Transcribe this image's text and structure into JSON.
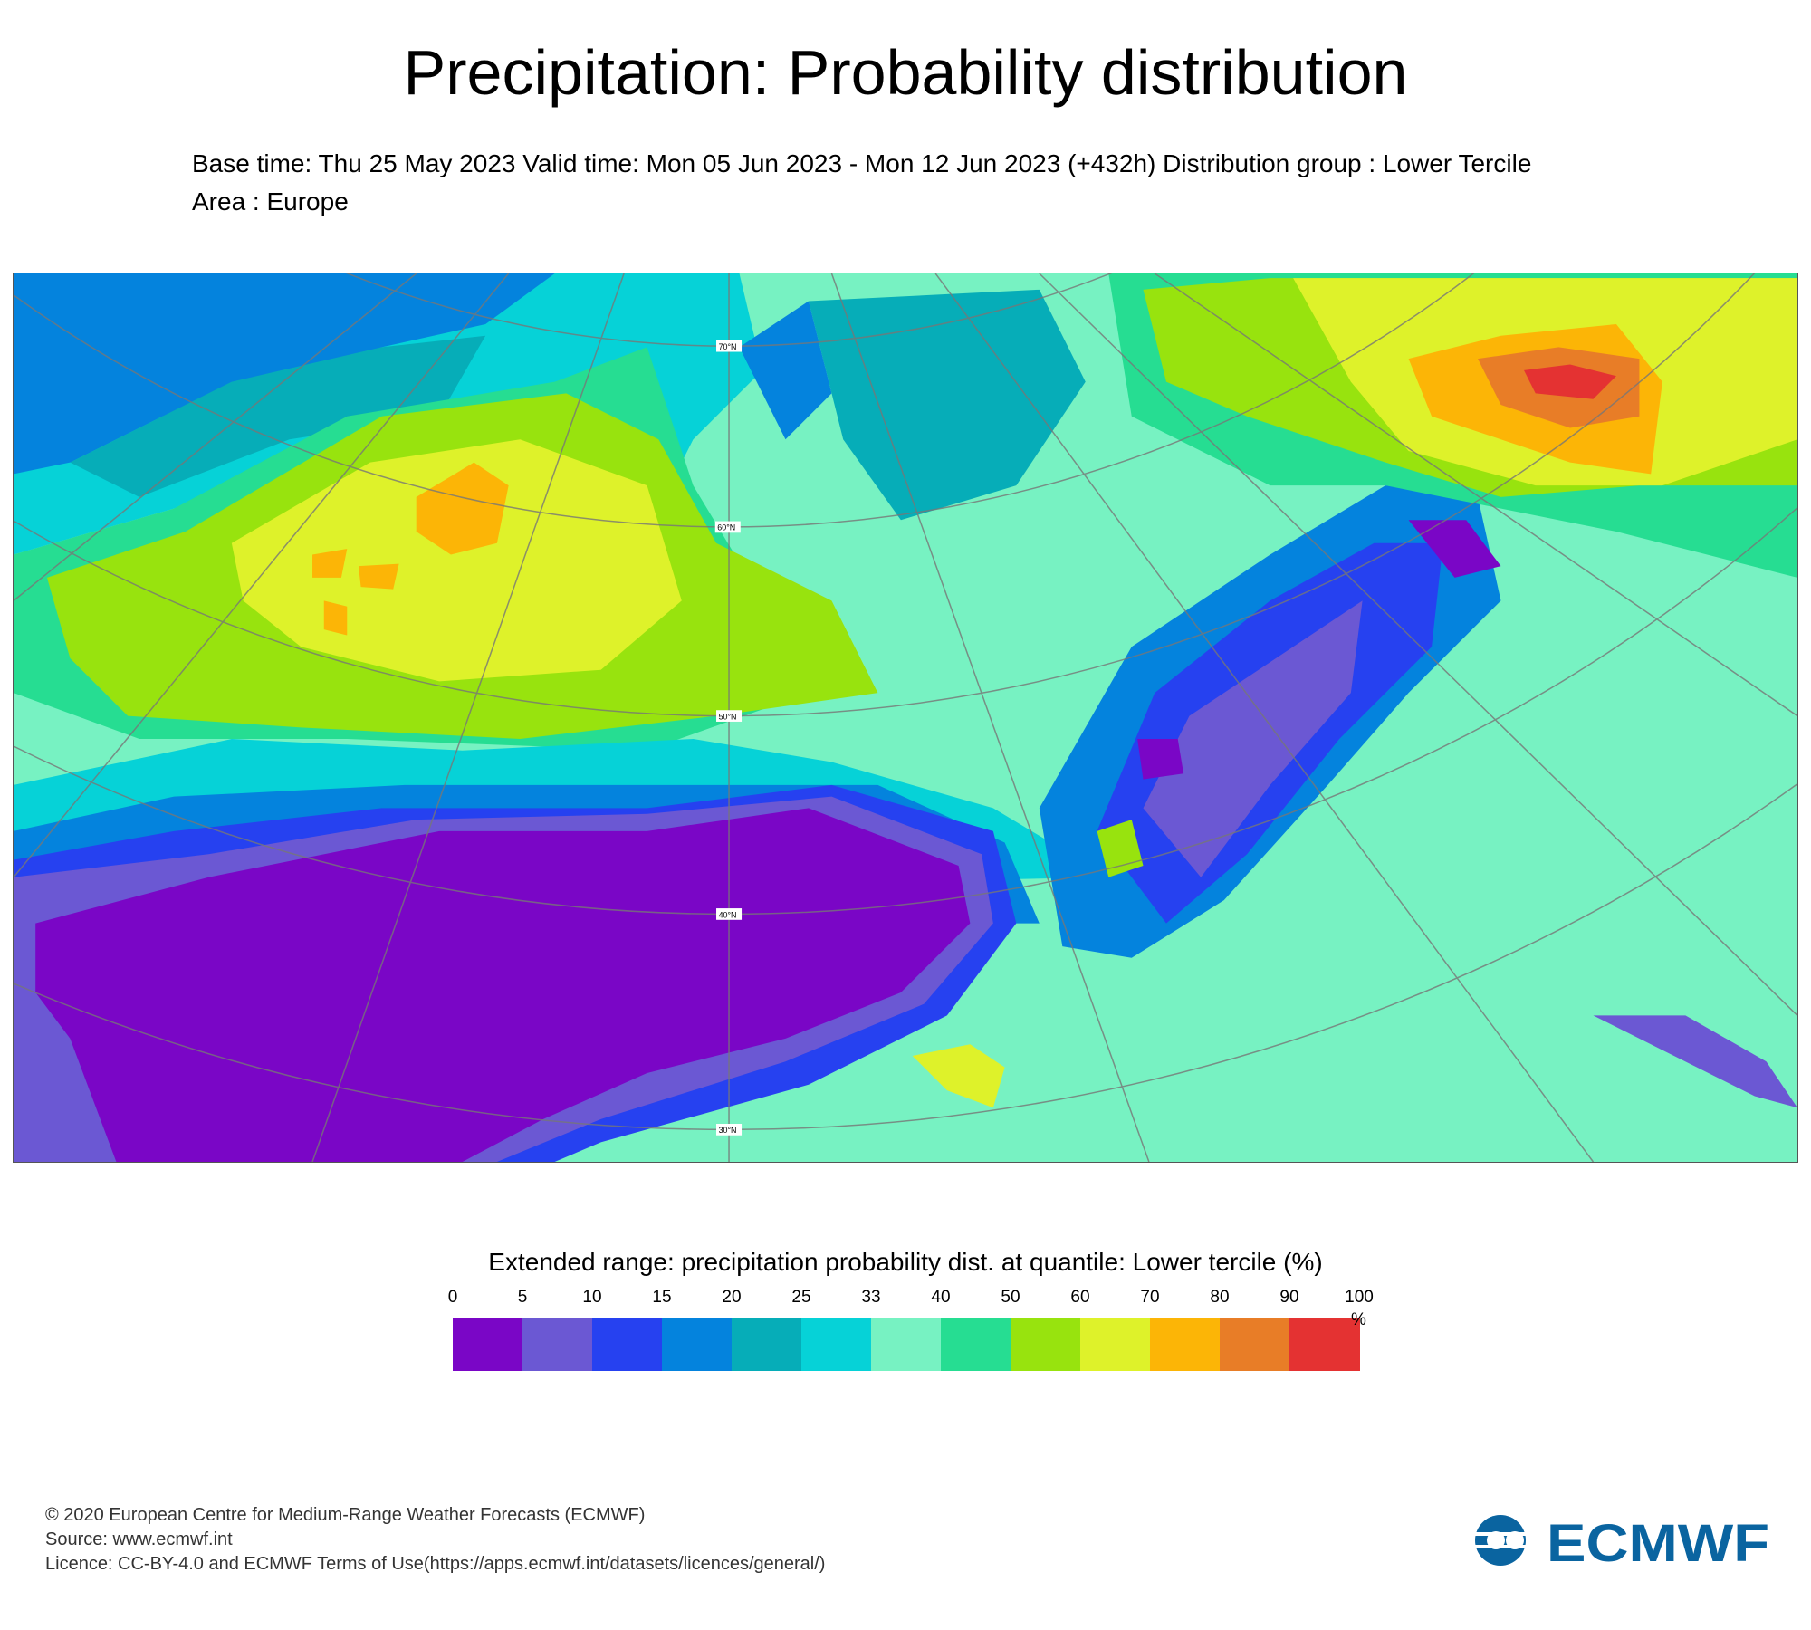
{
  "title": "Precipitation: Probability distribution",
  "subtitle": {
    "line1": "Base time: Thu 25 May 2023 Valid time: Mon 05 Jun 2023 - Mon 12 Jun 2023 (+432h) Distribution group : Lower Tercile",
    "line2": "Area : Europe"
  },
  "map": {
    "lat_labels": [
      "70°N",
      "60°N",
      "50°N",
      "40°N",
      "30°N"
    ],
    "background_color": "#77f2c2"
  },
  "chart_data": {
    "type": "heatmap",
    "title": "Extended range: precipitation probability dist. at quantile: Lower tercile (%)",
    "unit": "%",
    "levels": [
      "0",
      "5",
      "10",
      "15",
      "20",
      "25",
      "33",
      "40",
      "50",
      "60",
      "70",
      "80",
      "90",
      "100"
    ],
    "colors": [
      "#7a06c6",
      "#6b58d3",
      "#2641f0",
      "#0483dd",
      "#06adb8",
      "#06d2d7",
      "#77f2c2",
      "#26dd92",
      "#98e30e",
      "#def22a",
      "#fcb506",
      "#e87d27",
      "#e43232"
    ],
    "area": "Europe"
  },
  "footer": {
    "copyright": "© 2020 European Centre for Medium-Range Weather Forecasts (ECMWF)",
    "source": "Source: www.ecmwf.int",
    "licence": "Licence: CC-BY-4.0 and ECMWF Terms of Use(https://apps.ecmwf.int/datasets/licences/general/)",
    "logo_text": "ECMWF",
    "logo_color": "#0a64a0"
  }
}
